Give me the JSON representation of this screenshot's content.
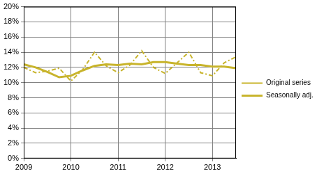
{
  "chart_data": {
    "type": "line",
    "categories": [
      "2009",
      null,
      null,
      null,
      "2010",
      null,
      null,
      null,
      "2011",
      null,
      null,
      null,
      "2012",
      null,
      null,
      null,
      "2013",
      null,
      null
    ],
    "series": [
      {
        "name": "Original series",
        "color": "#c8b42c",
        "line_style": "dashdot",
        "values": [
          12.0,
          11.3,
          11.5,
          11.9,
          10.2,
          11.7,
          14.0,
          12.2,
          11.3,
          12.3,
          14.2,
          12.0,
          11.2,
          12.6,
          14.0,
          11.3,
          10.9,
          12.6,
          13.4
        ]
      },
      {
        "name": "Seasonally adj.",
        "color": "#c8b42c",
        "line_style": "solid",
        "values": [
          12.4,
          12.0,
          11.4,
          10.7,
          10.9,
          11.6,
          12.2,
          12.4,
          12.3,
          12.5,
          12.4,
          12.7,
          12.7,
          12.5,
          12.3,
          12.3,
          12.1,
          12.1,
          11.9
        ]
      }
    ],
    "ylim": [
      0,
      20
    ],
    "yticks": [
      {
        "value": 0,
        "label": "0%"
      },
      {
        "value": 2,
        "label": "2%"
      },
      {
        "value": 4,
        "label": "4%"
      },
      {
        "value": 6,
        "label": "6%"
      },
      {
        "value": 8,
        "label": "8%"
      },
      {
        "value": 10,
        "label": "10%"
      },
      {
        "value": 12,
        "label": "12%"
      },
      {
        "value": 14,
        "label": "14%"
      },
      {
        "value": 16,
        "label": "16%"
      },
      {
        "value": 18,
        "label": "18%"
      },
      {
        "value": 20,
        "label": "20%"
      }
    ],
    "grid": true,
    "legend": "right"
  }
}
